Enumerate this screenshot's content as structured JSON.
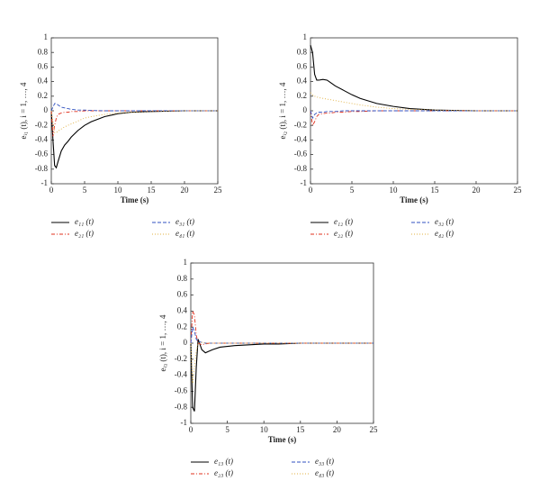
{
  "chart_data": [
    {
      "type": "line",
      "xlabel": "Time (s)",
      "ylabel": "eᵢ₁ (t), i = 1, …, 4",
      "x": [
        0,
        0.25,
        0.5,
        0.75,
        1,
        1.5,
        2,
        2.5,
        3,
        4,
        5,
        6,
        8,
        10,
        12,
        15,
        20,
        25
      ],
      "xlim": [
        0,
        25
      ],
      "ylim": [
        -1,
        1
      ],
      "xticks": [
        0,
        5,
        10,
        15,
        20,
        25
      ],
      "yticks": [
        -1,
        -0.8,
        -0.6,
        -0.4,
        -0.2,
        0,
        0.2,
        0.4,
        0.6,
        0.8,
        1
      ],
      "series": [
        {
          "name": "e₁₁ (t)",
          "color": "#000000",
          "dash": "solid",
          "values": [
            0,
            -0.4,
            -0.75,
            -0.78,
            -0.7,
            -0.55,
            -0.47,
            -0.42,
            -0.36,
            -0.27,
            -0.2,
            -0.15,
            -0.08,
            -0.04,
            -0.02,
            -0.01,
            0,
            0
          ]
        },
        {
          "name": "e₂₁ (t)",
          "color": "#e0301e",
          "dash": "dashdot",
          "values": [
            0,
            -0.35,
            -0.2,
            -0.1,
            -0.05,
            -0.03,
            -0.02,
            -0.02,
            -0.01,
            -0.01,
            0,
            0,
            0,
            0,
            0,
            0,
            0,
            0
          ]
        },
        {
          "name": "e₃₁ (t)",
          "color": "#3050c0",
          "dash": "dashed",
          "values": [
            0,
            0.05,
            0.1,
            0.1,
            0.08,
            0.05,
            0.04,
            0.03,
            0.02,
            0.01,
            0.01,
            0.005,
            0,
            0,
            0,
            0,
            0,
            0
          ]
        },
        {
          "name": "e₄₁ (t)",
          "color": "#e0b040",
          "dash": "dotted",
          "values": [
            0,
            -0.15,
            -0.3,
            -0.3,
            -0.28,
            -0.25,
            -0.22,
            -0.2,
            -0.18,
            -0.14,
            -0.1,
            -0.08,
            -0.05,
            -0.03,
            -0.02,
            -0.01,
            0,
            0
          ]
        }
      ]
    },
    {
      "type": "line",
      "xlabel": "Time (s)",
      "ylabel": "eᵢ₂ (t), i = 1, …, 4",
      "x": [
        0,
        0.25,
        0.5,
        0.75,
        1,
        1.5,
        2,
        2.5,
        3,
        4,
        5,
        6,
        8,
        10,
        12,
        15,
        20,
        25
      ],
      "xlim": [
        0,
        25
      ],
      "ylim": [
        -1,
        1
      ],
      "xticks": [
        0,
        5,
        10,
        15,
        20,
        25
      ],
      "yticks": [
        -1,
        -0.8,
        -0.6,
        -0.4,
        -0.2,
        0,
        0.2,
        0.4,
        0.6,
        0.8,
        1
      ],
      "series": [
        {
          "name": "e₁₂ (t)",
          "color": "#000000",
          "dash": "solid",
          "values": [
            0.9,
            0.8,
            0.5,
            0.42,
            0.42,
            0.43,
            0.42,
            0.38,
            0.34,
            0.28,
            0.22,
            0.17,
            0.1,
            0.06,
            0.03,
            0.01,
            0,
            0
          ]
        },
        {
          "name": "e₂₂ (t)",
          "color": "#e0301e",
          "dash": "dashdot",
          "values": [
            0,
            -0.2,
            -0.15,
            -0.08,
            -0.05,
            -0.04,
            -0.03,
            -0.03,
            -0.02,
            -0.02,
            -0.01,
            -0.01,
            0,
            0,
            0,
            0,
            0,
            0
          ]
        },
        {
          "name": "e₃₂ (t)",
          "color": "#3050c0",
          "dash": "dashed",
          "values": [
            0,
            -0.1,
            -0.05,
            -0.03,
            -0.02,
            -0.02,
            -0.01,
            -0.01,
            -0.01,
            0,
            0,
            0,
            0,
            0,
            0,
            0,
            0,
            0
          ]
        },
        {
          "name": "e₄₂ (t)",
          "color": "#e0b040",
          "dash": "dotted",
          "values": [
            0.25,
            0.22,
            0.2,
            0.19,
            0.18,
            0.17,
            0.16,
            0.15,
            0.14,
            0.12,
            0.1,
            0.08,
            0.05,
            0.03,
            0.02,
            0.01,
            0,
            0
          ]
        }
      ]
    },
    {
      "type": "line",
      "xlabel": "Time (s)",
      "ylabel": "eᵢ₃ (t), i = 1, …, 4",
      "x": [
        0,
        0.25,
        0.5,
        0.75,
        1,
        1.5,
        2,
        2.5,
        3,
        4,
        5,
        6,
        8,
        10,
        12,
        15,
        20,
        25
      ],
      "xlim": [
        0,
        25
      ],
      "ylim": [
        -1,
        1
      ],
      "xticks": [
        0,
        5,
        10,
        15,
        20,
        25
      ],
      "yticks": [
        -1,
        -0.8,
        -0.6,
        -0.4,
        -0.2,
        0,
        0.2,
        0.4,
        0.6,
        0.8,
        1
      ],
      "series": [
        {
          "name": "e₁₃ (t)",
          "color": "#000000",
          "dash": "solid",
          "values": [
            0,
            -0.8,
            -0.85,
            -0.3,
            0.05,
            -0.08,
            -0.12,
            -0.1,
            -0.08,
            -0.05,
            -0.04,
            -0.03,
            -0.02,
            -0.01,
            -0.01,
            0,
            0,
            0
          ]
        },
        {
          "name": "e₂₃ (t)",
          "color": "#e0301e",
          "dash": "dashdot",
          "values": [
            0,
            0.4,
            0.35,
            0.1,
            0,
            -0.02,
            -0.01,
            0,
            0,
            0,
            0,
            0,
            0,
            0,
            0,
            0,
            0,
            0
          ]
        },
        {
          "name": "e₃₃ (t)",
          "color": "#3050c0",
          "dash": "dashed",
          "values": [
            0,
            0.2,
            0.15,
            0.05,
            0.02,
            0.01,
            0,
            0,
            0,
            0,
            0,
            0,
            0,
            0,
            0,
            0,
            0,
            0
          ]
        },
        {
          "name": "e₄₃ (t)",
          "color": "#e0b040",
          "dash": "dotted",
          "values": [
            0,
            -0.5,
            -0.3,
            -0.1,
            0,
            0.01,
            0,
            0,
            0,
            0,
            0,
            0,
            0,
            0,
            0,
            0,
            0,
            0
          ]
        }
      ]
    }
  ]
}
